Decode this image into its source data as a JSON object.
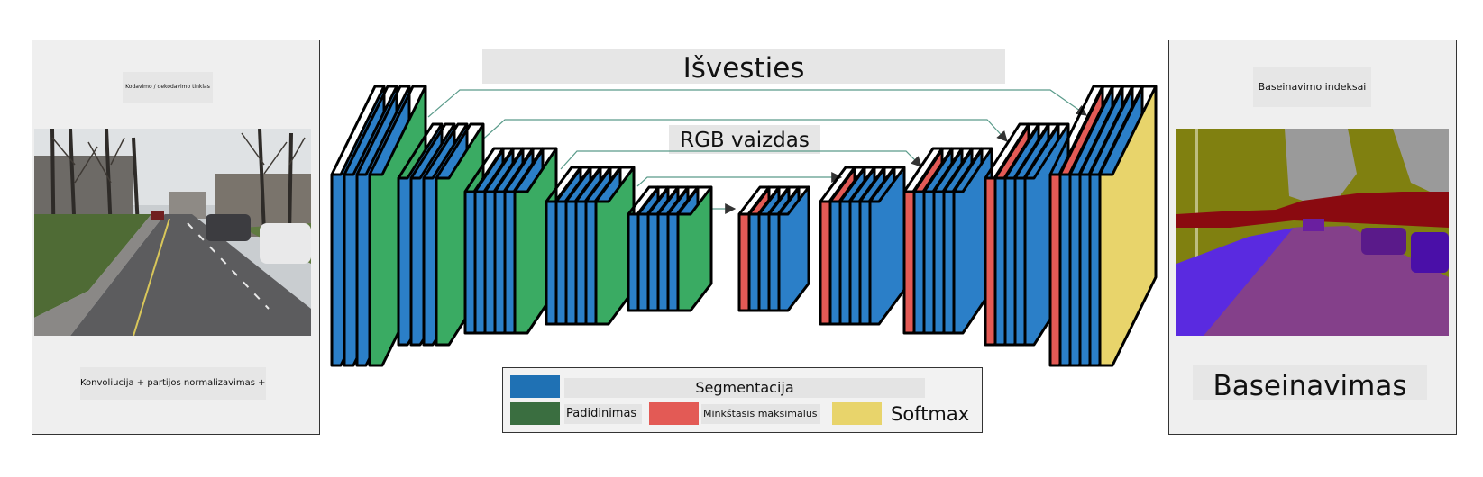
{
  "colors": {
    "conv": "#2b7fc8",
    "upsample": "#3aab63",
    "softmax_red": "#e35a55",
    "softmax_yellow": "#e8d46b",
    "arrow": "#5a9b8a",
    "legend_blue": "#1f71b4",
    "legend_green": "#3a6e40",
    "legend_red": "#e35a55",
    "legend_yellow": "#e8d46b"
  },
  "left_panel": {
    "caption_top": "Kodavimo / dekodavimo tinklas",
    "caption_bottom": "Konvoliucija + partijos normalizavimas + ReLU",
    "image_icon": "street-photo"
  },
  "right_panel": {
    "caption_top": "Baseinavimo indeksai",
    "caption_bottom": "Baseinavimas",
    "image_icon": "segmentation-map"
  },
  "top_labels": {
    "output": "Išvesties",
    "input": "RGB vaizdas"
  },
  "legend": {
    "items": [
      {
        "label": "Segmentacija",
        "color": "#1f71b4"
      },
      {
        "label": "Padidinimas",
        "color": "#3a6e40"
      },
      {
        "label": "Minkštasis maksimalus",
        "color": "#e35a55"
      },
      {
        "label": "Softmax",
        "color": "#e8d46b"
      }
    ]
  }
}
